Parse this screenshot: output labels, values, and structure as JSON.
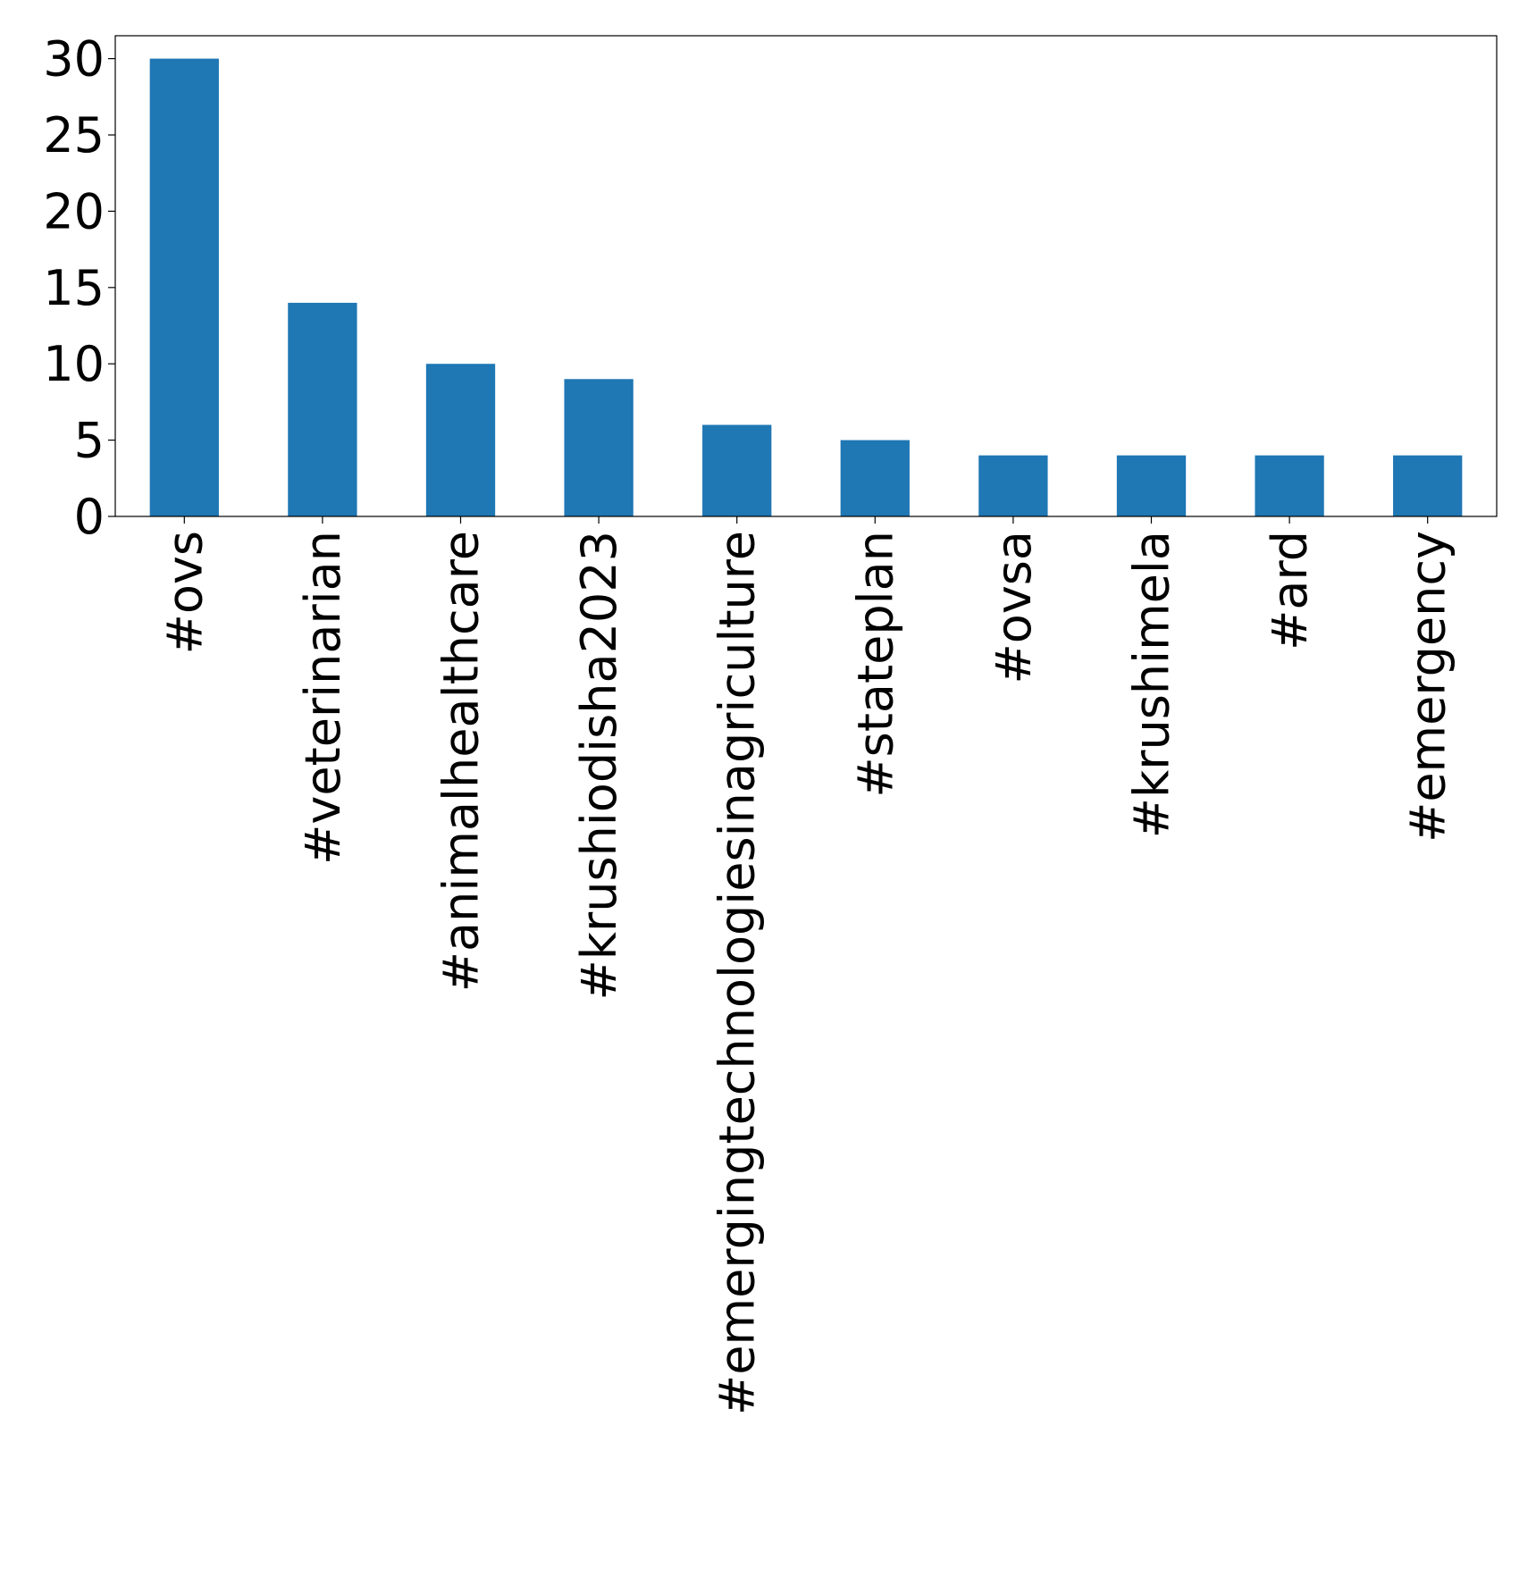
{
  "chart_data": {
    "type": "bar",
    "title": "",
    "xlabel": "",
    "ylabel": "",
    "categories": [
      "#ovs",
      "#veterinarian",
      "#animalhealthcare",
      "#krushiodisha2023",
      "#emergingtechnologiesinagriculture",
      "#stateplan",
      "#ovsa",
      "#krushimela",
      "#ard",
      "#emergency"
    ],
    "values": [
      30,
      14,
      10,
      9,
      6,
      5,
      4,
      4,
      4,
      4
    ],
    "ylim": [
      0,
      31.5
    ],
    "yticks": [
      0,
      5,
      10,
      15,
      20,
      25,
      30
    ],
    "grid": false,
    "legend": "none",
    "colors": {
      "bar": "#1f77b4",
      "axis": "#000000",
      "background": "#ffffff"
    }
  }
}
